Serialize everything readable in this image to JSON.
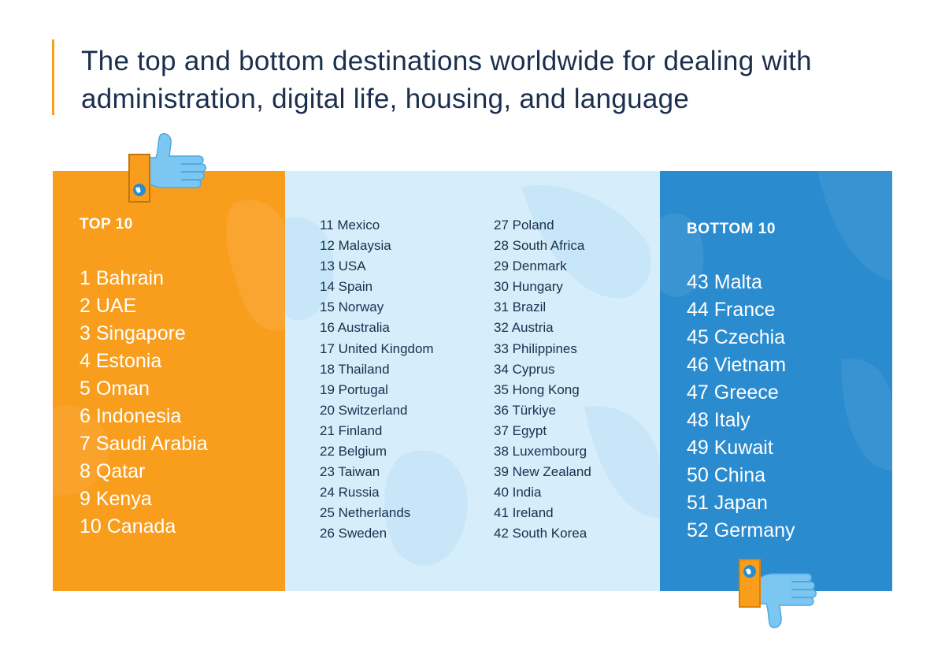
{
  "title": "The top and bottom destinations worldwide for dealing with administration, digital life, housing, and language",
  "colors": {
    "accent": "#f7a21b",
    "top_panel": "#f99d1c",
    "middle_panel": "#d6edfb",
    "bottom_panel": "#2a8bcf",
    "title_text": "#1b2f4d"
  },
  "icons": {
    "top": "thumbs-up-icon",
    "bottom": "thumbs-down-icon"
  },
  "top10": {
    "heading": "TOP 10",
    "items": [
      "1  Bahrain",
      "2 UAE",
      "3 Singapore",
      "4 Estonia",
      "5 Oman",
      "6 Indonesia",
      "7 Saudi Arabia",
      "8 Qatar",
      "9 Kenya",
      "10 Canada"
    ]
  },
  "middle": {
    "column1": [
      "11 Mexico",
      "12 Malaysia",
      "13 USA",
      "14 Spain",
      "15 Norway",
      "16 Australia",
      "17 United Kingdom",
      "18 Thailand",
      "19 Portugal",
      "20 Switzerland",
      "21 Finland",
      "22 Belgium",
      "23 Taiwan",
      "24 Russia",
      "25 Netherlands",
      "26 Sweden"
    ],
    "column2": [
      "27 Poland",
      "28 South Africa",
      "29 Denmark",
      "30 Hungary",
      "31 Brazil",
      "32 Austria",
      "33 Philippines",
      "34 Cyprus",
      "35 Hong Kong",
      "36 Türkiye",
      "37 Egypt",
      "38 Luxembourg",
      "39 New Zealand",
      "40 India",
      "41 Ireland",
      "42 South Korea"
    ]
  },
  "bottom10": {
    "heading": "BOTTOM 10",
    "items": [
      "43 Malta",
      "44 France",
      "45 Czechia",
      "46 Vietnam",
      "47 Greece",
      "48 Italy",
      "49 Kuwait",
      "50 China",
      "51 Japan",
      "52 Germany"
    ]
  }
}
